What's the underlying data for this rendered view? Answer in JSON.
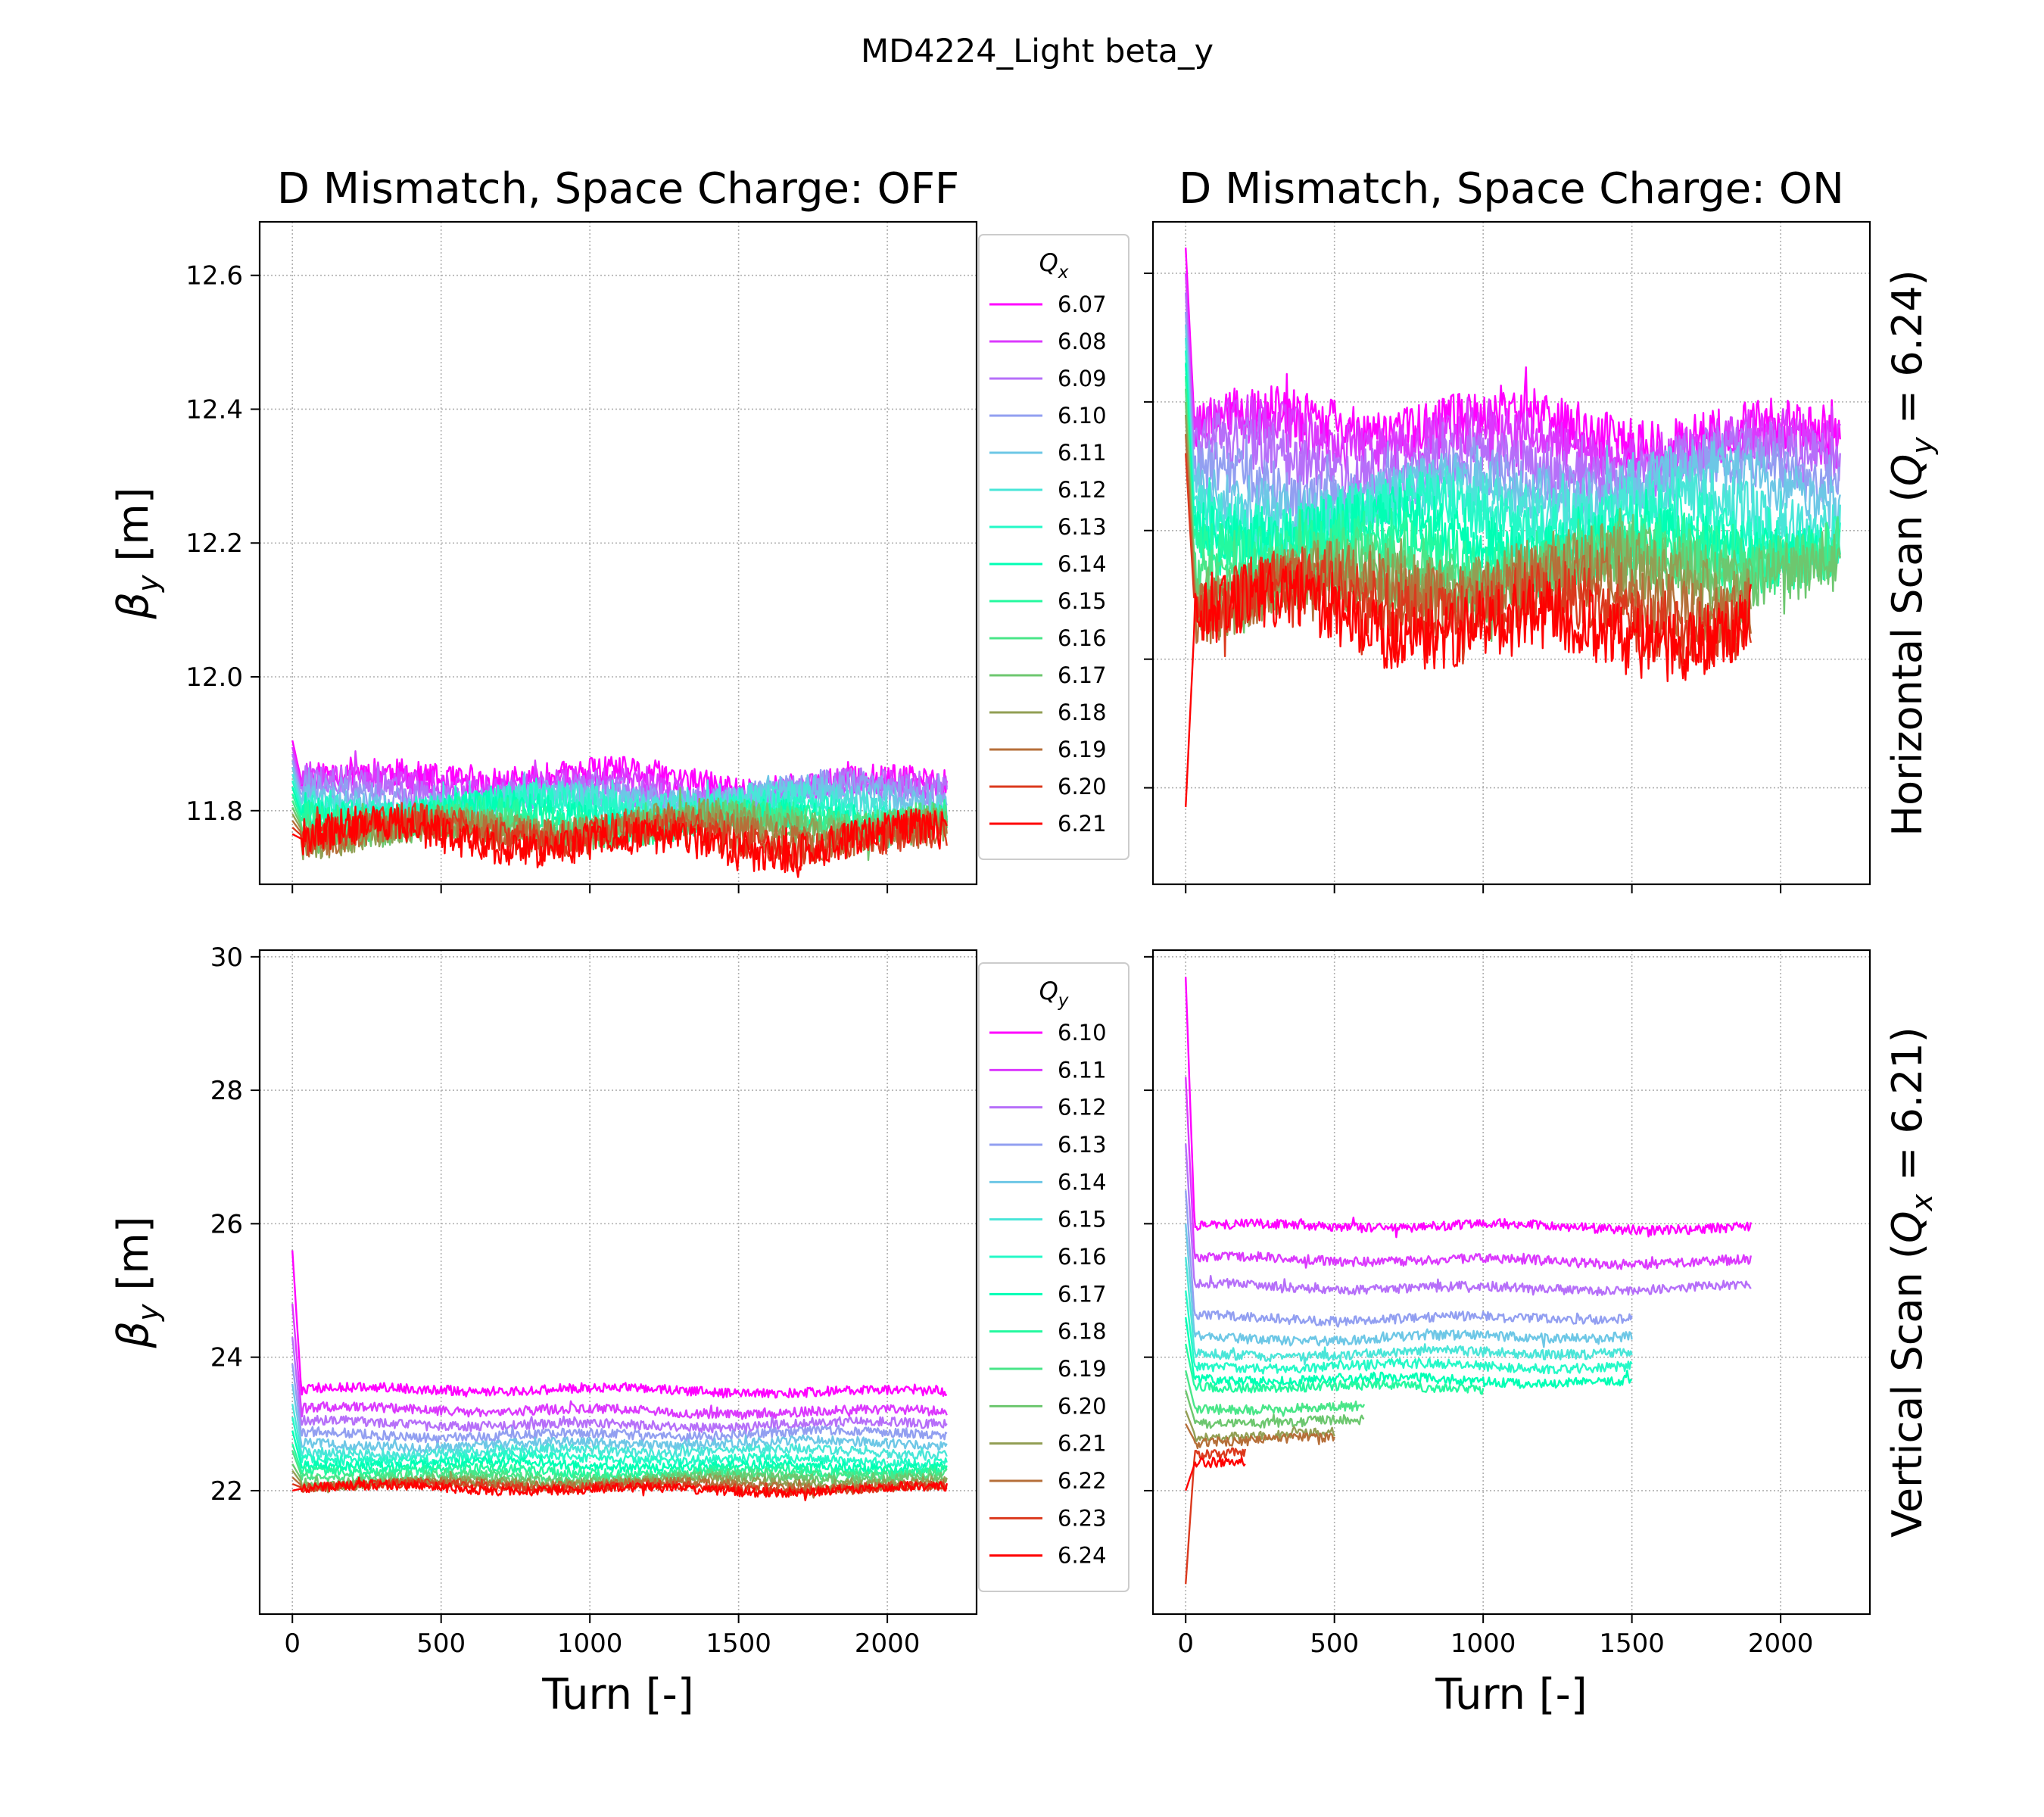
{
  "figure": {
    "suptitle": "MD4224_Light beta_y",
    "col_titles": [
      "D Mismatch, Space Charge: OFF",
      "D Mismatch, Space Charge: ON"
    ],
    "row_labels": [
      "Horizontal Scan ($Q_y$ = 6.24)",
      "Vertical Scan ($Q_x$ = 6.21)"
    ],
    "row_label_parts": [
      {
        "pre": "Horizontal Scan (",
        "sym": "Q",
        "sub": "y",
        "post": " = 6.24)"
      },
      {
        "pre": "Vertical Scan (",
        "sym": "Q",
        "sub": "x",
        "post": " = 6.21)"
      }
    ],
    "xlabel": "Turn [-]",
    "ylabel": {
      "sym": "β",
      "sub": "y",
      "unit": " [m]"
    },
    "legends": [
      {
        "title_sym": "Q",
        "title_sub": "x",
        "labels": [
          "6.07",
          "6.08",
          "6.09",
          "6.10",
          "6.11",
          "6.12",
          "6.13",
          "6.14",
          "6.15",
          "6.16",
          "6.17",
          "6.18",
          "6.19",
          "6.20",
          "6.21"
        ]
      },
      {
        "title_sym": "Q",
        "title_sub": "y",
        "labels": [
          "6.10",
          "6.11",
          "6.12",
          "6.13",
          "6.14",
          "6.15",
          "6.16",
          "6.17",
          "6.18",
          "6.19",
          "6.20",
          "6.21",
          "6.22",
          "6.23",
          "6.24"
        ]
      }
    ],
    "colormap": "rainbow"
  },
  "chart_data": [
    {
      "type": "line",
      "panel": "top-left",
      "title": "D Mismatch, Space Charge: OFF",
      "ylabel": "β_y [m]",
      "xlim": [
        -110,
        2300
      ],
      "ylim": [
        11.69,
        12.68
      ],
      "xticks": [
        0,
        500,
        1000,
        1500,
        2000
      ],
      "yticks": [
        11.8,
        12.0,
        12.2,
        12.4,
        12.6
      ],
      "ytick_labels": [
        "11.8",
        "12.0",
        "12.2",
        "12.4",
        "12.6"
      ],
      "show_xtick_labels": false,
      "show_ytick_labels": true,
      "grid": true,
      "legend_title": "Q_x",
      "series": [
        {
          "name": "6.07",
          "x_end": 2200,
          "mean": 11.845,
          "noise": 0.012,
          "start_peak": 11.905
        },
        {
          "name": "6.08",
          "x_end": 2200,
          "mean": 11.838,
          "noise": 0.012,
          "start_peak": 11.895
        },
        {
          "name": "6.09",
          "x_end": 2200,
          "mean": 11.83,
          "noise": 0.012,
          "start_peak": 11.885
        },
        {
          "name": "6.10",
          "x_end": 2200,
          "mean": 11.823,
          "noise": 0.012,
          "start_peak": 11.875
        },
        {
          "name": "6.11",
          "x_end": 2200,
          "mean": 11.815,
          "noise": 0.012,
          "start_peak": 11.865
        },
        {
          "name": "6.12",
          "x_end": 2200,
          "mean": 11.808,
          "noise": 0.012,
          "start_peak": 11.855
        },
        {
          "name": "6.13",
          "x_end": 2200,
          "mean": 11.801,
          "noise": 0.012,
          "start_peak": 11.845
        },
        {
          "name": "6.14",
          "x_end": 2200,
          "mean": 11.794,
          "noise": 0.012,
          "start_peak": 11.835
        },
        {
          "name": "6.15",
          "x_end": 2200,
          "mean": 11.788,
          "noise": 0.013,
          "start_peak": 11.825
        },
        {
          "name": "6.16",
          "x_end": 2200,
          "mean": 11.782,
          "noise": 0.013,
          "start_peak": 11.815
        },
        {
          "name": "6.17",
          "x_end": 2200,
          "mean": 11.777,
          "noise": 0.013,
          "start_peak": 11.805
        },
        {
          "name": "6.18",
          "x_end": 2200,
          "mean": 11.772,
          "noise": 0.014,
          "start_peak": 11.795
        },
        {
          "name": "6.19",
          "x_end": 2200,
          "mean": 11.767,
          "noise": 0.014,
          "start_peak": 11.785
        },
        {
          "name": "6.20",
          "x_end": 2200,
          "mean": 11.763,
          "noise": 0.015,
          "start_peak": 11.775
        },
        {
          "name": "6.21",
          "x_end": 2200,
          "mean": 11.758,
          "noise": 0.016,
          "start_peak": 11.765
        }
      ]
    },
    {
      "type": "line",
      "panel": "top-right",
      "title": "D Mismatch, Space Charge: ON",
      "row_label": "Horizontal Scan (Q_y = 6.24)",
      "xlim": [
        -110,
        2300
      ],
      "ylim": [
        11.65,
        12.68
      ],
      "xticks": [
        0,
        500,
        1000,
        1500,
        2000
      ],
      "yticks": [
        11.8,
        12.0,
        12.2,
        12.4,
        12.6
      ],
      "show_xtick_labels": false,
      "show_ytick_labels": false,
      "grid": true,
      "series": [
        {
          "name": "6.07",
          "x_end": 2200,
          "mean": 12.36,
          "noise": 0.022,
          "start_peak": 12.64
        },
        {
          "name": "6.08",
          "x_end": 2200,
          "mean": 12.34,
          "noise": 0.022,
          "start_peak": 12.6
        },
        {
          "name": "6.09",
          "x_end": 2200,
          "mean": 12.31,
          "noise": 0.023,
          "start_peak": 12.57
        },
        {
          "name": "6.10",
          "x_end": 2200,
          "mean": 12.28,
          "noise": 0.023,
          "start_peak": 12.54
        },
        {
          "name": "6.11",
          "x_end": 2200,
          "mean": 12.26,
          "noise": 0.024,
          "start_peak": 12.52
        },
        {
          "name": "6.12",
          "x_end": 2200,
          "mean": 12.23,
          "noise": 0.024,
          "start_peak": 12.5
        },
        {
          "name": "6.13",
          "x_end": 2200,
          "mean": 12.21,
          "noise": 0.025,
          "start_peak": 12.48
        },
        {
          "name": "6.14",
          "x_end": 2200,
          "mean": 12.19,
          "noise": 0.025,
          "start_peak": 12.46
        },
        {
          "name": "6.15",
          "x_end": 2200,
          "mean": 12.17,
          "noise": 0.026,
          "start_peak": 12.44
        },
        {
          "name": "6.16",
          "x_end": 2200,
          "mean": 12.15,
          "noise": 0.026,
          "start_peak": 12.42
        },
        {
          "name": "6.17",
          "x_end": 2200,
          "mean": 12.13,
          "noise": 0.027,
          "start_peak": 12.4
        },
        {
          "name": "6.18",
          "x_end": 1900,
          "mean": 12.12,
          "noise": 0.028,
          "start_peak": 12.38
        },
        {
          "name": "6.19",
          "x_end": 1900,
          "mean": 12.1,
          "noise": 0.028,
          "start_peak": 12.35
        },
        {
          "name": "6.20",
          "x_end": 1900,
          "mean": 12.08,
          "noise": 0.029,
          "start_peak": 12.32
        },
        {
          "name": "6.21",
          "x_end": 1900,
          "mean": 12.06,
          "noise": 0.03,
          "start_peak": 11.77
        }
      ]
    },
    {
      "type": "line",
      "panel": "bottom-left",
      "xlabel": "Turn [-]",
      "ylabel": "β_y [m]",
      "xlim": [
        -110,
        2300
      ],
      "ylim": [
        20.15,
        30.1
      ],
      "xticks": [
        0,
        500,
        1000,
        1500,
        2000
      ],
      "xtick_labels": [
        "0",
        "500",
        "1000",
        "1500",
        "2000"
      ],
      "yticks": [
        22,
        24,
        26,
        28,
        30
      ],
      "ytick_labels": [
        "22",
        "24",
        "26",
        "28",
        "30"
      ],
      "show_xtick_labels": true,
      "show_ytick_labels": true,
      "grid": true,
      "legend_title": "Q_y",
      "series": [
        {
          "name": "6.10",
          "x_end": 2200,
          "mean": 23.5,
          "noise": 0.04,
          "start_peak": 25.6
        },
        {
          "name": "6.11",
          "x_end": 2200,
          "mean": 23.2,
          "noise": 0.04,
          "start_peak": 24.8
        },
        {
          "name": "6.12",
          "x_end": 2200,
          "mean": 23.0,
          "noise": 0.04,
          "start_peak": 24.3
        },
        {
          "name": "6.13",
          "x_end": 2200,
          "mean": 22.85,
          "noise": 0.04,
          "start_peak": 23.9
        },
        {
          "name": "6.14",
          "x_end": 2200,
          "mean": 22.7,
          "noise": 0.04,
          "start_peak": 23.6
        },
        {
          "name": "6.15",
          "x_end": 2200,
          "mean": 22.58,
          "noise": 0.04,
          "start_peak": 23.3
        },
        {
          "name": "6.16",
          "x_end": 2200,
          "mean": 22.47,
          "noise": 0.04,
          "start_peak": 23.1
        },
        {
          "name": "6.17",
          "x_end": 2200,
          "mean": 22.38,
          "noise": 0.04,
          "start_peak": 22.9
        },
        {
          "name": "6.18",
          "x_end": 2200,
          "mean": 22.3,
          "noise": 0.04,
          "start_peak": 22.7
        },
        {
          "name": "6.19",
          "x_end": 2200,
          "mean": 22.23,
          "noise": 0.04,
          "start_peak": 22.6
        },
        {
          "name": "6.20",
          "x_end": 2200,
          "mean": 22.17,
          "noise": 0.04,
          "start_peak": 22.4
        },
        {
          "name": "6.21",
          "x_end": 2200,
          "mean": 22.12,
          "noise": 0.04,
          "start_peak": 22.3
        },
        {
          "name": "6.22",
          "x_end": 2200,
          "mean": 22.08,
          "noise": 0.04,
          "start_peak": 22.2
        },
        {
          "name": "6.23",
          "x_end": 2200,
          "mean": 22.05,
          "noise": 0.04,
          "start_peak": 22.1
        },
        {
          "name": "6.24",
          "x_end": 2200,
          "mean": 22.03,
          "noise": 0.04,
          "start_peak": 22.0
        }
      ]
    },
    {
      "type": "line",
      "panel": "bottom-right",
      "xlabel": "Turn [-]",
      "row_label": "Vertical Scan (Q_x = 6.21)",
      "xlim": [
        -110,
        2300
      ],
      "ylim": [
        20.15,
        30.1
      ],
      "xticks": [
        0,
        500,
        1000,
        1500,
        2000
      ],
      "xtick_labels": [
        "0",
        "500",
        "1000",
        "1500",
        "2000"
      ],
      "yticks": [
        22,
        24,
        26,
        28,
        30
      ],
      "show_xtick_labels": true,
      "show_ytick_labels": false,
      "grid": true,
      "series": [
        {
          "name": "6.10",
          "x_end": 1900,
          "mean": 25.95,
          "noise": 0.04,
          "start_peak": 29.7
        },
        {
          "name": "6.11",
          "x_end": 1900,
          "mean": 25.45,
          "noise": 0.04,
          "start_peak": 28.2
        },
        {
          "name": "6.12",
          "x_end": 1900,
          "mean": 25.05,
          "noise": 0.04,
          "start_peak": 27.2
        },
        {
          "name": "6.13",
          "x_end": 1500,
          "mean": 24.6,
          "noise": 0.04,
          "start_peak": 26.5
        },
        {
          "name": "6.14",
          "x_end": 1500,
          "mean": 24.3,
          "noise": 0.04,
          "start_peak": 26.0
        },
        {
          "name": "6.15",
          "x_end": 1500,
          "mean": 24.05,
          "noise": 0.04,
          "start_peak": 25.5
        },
        {
          "name": "6.16",
          "x_end": 1500,
          "mean": 23.85,
          "noise": 0.04,
          "start_peak": 25.0
        },
        {
          "name": "6.17",
          "x_end": 1500,
          "mean": 23.65,
          "noise": 0.04,
          "start_peak": 24.6
        },
        {
          "name": "6.18",
          "x_end": 1000,
          "mean": 23.55,
          "noise": 0.04,
          "start_peak": 24.2
        },
        {
          "name": "6.19",
          "x_end": 600,
          "mean": 23.25,
          "noise": 0.04,
          "start_peak": 23.8
        },
        {
          "name": "6.20",
          "x_end": 600,
          "mean": 23.05,
          "noise": 0.04,
          "start_peak": 23.5
        },
        {
          "name": "6.21",
          "x_end": 500,
          "mean": 22.85,
          "noise": 0.04,
          "start_peak": 23.2
        },
        {
          "name": "6.22",
          "x_end": 500,
          "mean": 22.75,
          "noise": 0.04,
          "start_peak": 23.0
        },
        {
          "name": "6.23",
          "x_end": 200,
          "mean": 22.55,
          "noise": 0.04,
          "start_peak": 20.6
        },
        {
          "name": "6.24",
          "x_end": 200,
          "mean": 22.4,
          "noise": 0.04,
          "start_peak": 22.0
        }
      ]
    }
  ]
}
